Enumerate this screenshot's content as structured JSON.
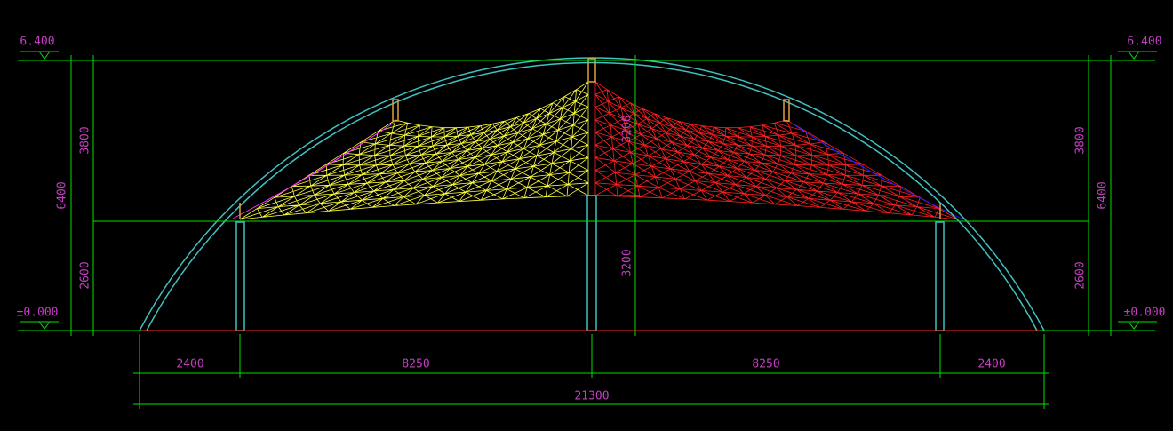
{
  "elevations": {
    "left_top": "6.400",
    "right_top": "6.400",
    "left_bottom": "±0.000",
    "right_bottom": "±0.000"
  },
  "dimensions": {
    "left": {
      "upper": "3800",
      "lower": "2600",
      "total": "6400"
    },
    "right": {
      "upper": "3800",
      "lower": "2600",
      "total": "6400"
    },
    "center": {
      "upper": "3200",
      "lower": "3200"
    },
    "bottom": {
      "segments": [
        "2400",
        "8250",
        "8250",
        "2400"
      ],
      "total": "21300"
    }
  }
}
